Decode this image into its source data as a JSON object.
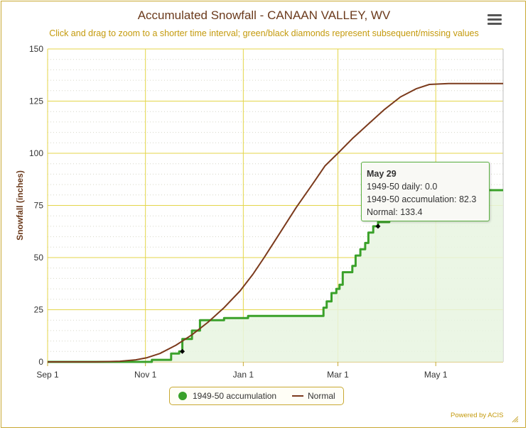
{
  "title": "Accumulated Snowfall - CANAAN VALLEY, WV",
  "subtitle": "Click and drag to zoom to a shorter time interval; green/black diamonds represent subsequent/missing values",
  "credit": "Powered by ACIS",
  "colors": {
    "gridline": "#e4d64a",
    "accumulation": "#3aa12a",
    "fill": "#e8f4e0",
    "normal": "#7b3a1c",
    "accent": "#c8a832"
  },
  "icons": {
    "menu": "hamburger-menu-icon",
    "resize": "resize-handle-icon"
  },
  "tooltip": {
    "date": "May 29",
    "daily": "1949-50 daily: 0.0",
    "accumulation": "1949-50 accumulation: 82.3",
    "normal": "Normal: 133.4"
  },
  "legend": {
    "accumulation": "1949-50 accumulation",
    "normal": "Normal"
  },
  "chart_data": {
    "type": "line",
    "title": "Accumulated Snowfall - CANAAN VALLEY, WV",
    "ylabel": "Snowfall (inches)",
    "xlabel": "",
    "ylim": [
      0,
      150
    ],
    "yticks": [
      0,
      25,
      50,
      75,
      100,
      125,
      150
    ],
    "x_range": [
      "Sep 1",
      "Jun 12"
    ],
    "xticks": [
      {
        "label": "Sep 1",
        "day": 0
      },
      {
        "label": "Nov 1",
        "day": 61
      },
      {
        "label": "Jan 1",
        "day": 122
      },
      {
        "label": "Mar 1",
        "day": 181
      },
      {
        "label": "May 1",
        "day": 242
      }
    ],
    "x_max_day": 284,
    "grid": true,
    "legend_position": "bottom-center",
    "series": [
      {
        "name": "1949-50 accumulation",
        "style": "step-area",
        "points": [
          [
            0,
            0
          ],
          [
            65,
            0
          ],
          [
            65,
            1
          ],
          [
            77,
            1
          ],
          [
            77,
            4
          ],
          [
            82,
            4
          ],
          [
            82,
            5
          ],
          [
            84,
            5
          ],
          [
            84,
            11
          ],
          [
            90,
            11
          ],
          [
            90,
            15
          ],
          [
            95,
            15
          ],
          [
            95,
            20
          ],
          [
            110,
            20
          ],
          [
            110,
            21
          ],
          [
            125,
            21
          ],
          [
            125,
            22
          ],
          [
            172,
            22
          ],
          [
            172,
            26
          ],
          [
            174,
            26
          ],
          [
            174,
            29
          ],
          [
            177,
            29
          ],
          [
            177,
            33
          ],
          [
            180,
            33
          ],
          [
            180,
            35
          ],
          [
            182,
            35
          ],
          [
            182,
            37
          ],
          [
            184,
            37
          ],
          [
            184,
            43
          ],
          [
            190,
            43
          ],
          [
            190,
            46
          ],
          [
            192,
            46
          ],
          [
            192,
            51
          ],
          [
            195,
            51
          ],
          [
            195,
            54
          ],
          [
            198,
            54
          ],
          [
            198,
            57
          ],
          [
            200,
            57
          ],
          [
            200,
            62
          ],
          [
            203,
            62
          ],
          [
            203,
            65
          ],
          [
            206,
            65
          ],
          [
            206,
            67
          ],
          [
            213,
            67
          ],
          [
            213,
            70
          ],
          [
            216,
            70
          ],
          [
            216,
            74
          ],
          [
            219,
            74
          ],
          [
            219,
            77
          ],
          [
            225,
            77
          ],
          [
            225,
            80
          ],
          [
            229,
            80
          ],
          [
            229,
            82.3
          ],
          [
            284,
            82.3
          ]
        ]
      },
      {
        "name": "Normal",
        "style": "line",
        "points": [
          [
            0,
            0
          ],
          [
            30,
            0
          ],
          [
            45,
            0.3
          ],
          [
            55,
            1
          ],
          [
            62,
            2
          ],
          [
            70,
            4
          ],
          [
            80,
            8
          ],
          [
            90,
            13
          ],
          [
            100,
            19
          ],
          [
            110,
            26
          ],
          [
            120,
            34
          ],
          [
            128,
            42
          ],
          [
            135,
            50
          ],
          [
            145,
            62
          ],
          [
            155,
            74
          ],
          [
            165,
            85
          ],
          [
            173,
            94
          ],
          [
            181,
            100
          ],
          [
            190,
            107
          ],
          [
            200,
            114
          ],
          [
            210,
            121
          ],
          [
            220,
            127
          ],
          [
            230,
            131
          ],
          [
            238,
            133
          ],
          [
            250,
            133.4
          ],
          [
            284,
            133.4
          ]
        ]
      }
    ],
    "markers": [
      {
        "day": 84,
        "value": 5,
        "shape": "diamond",
        "color": "#000000"
      },
      {
        "day": 206,
        "value": 65,
        "shape": "diamond",
        "color": "#000000"
      }
    ],
    "hover_point": {
      "series": "1949-50 accumulation",
      "day": 270,
      "value": 82.3
    }
  }
}
